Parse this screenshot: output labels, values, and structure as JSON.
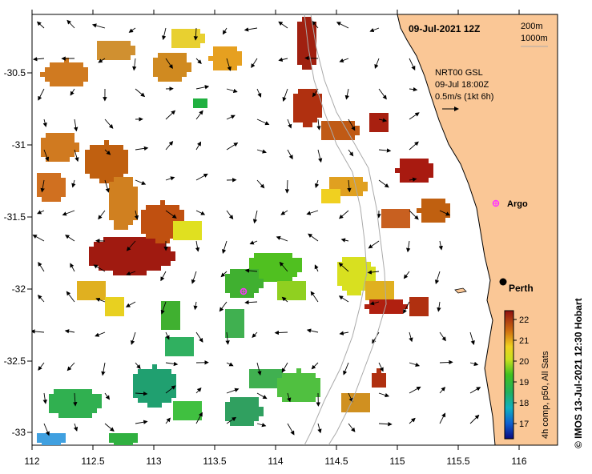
{
  "map": {
    "date_title": "09-Jul-2021 12Z",
    "isobath_labels": [
      "200m",
      "1000m"
    ],
    "current_info": {
      "model": "NRT00 GSL",
      "time": "09-Jul 18:00Z",
      "scale": "0.5m/s (1kt 6h)"
    },
    "places": {
      "perth": "Perth",
      "argo": "Argo"
    },
    "x_ticks": [
      "112",
      "112.5",
      "113",
      "113.5",
      "114",
      "114.5",
      "115",
      "115.5",
      "116"
    ],
    "y_ticks": [
      "-30.5",
      "-31",
      "-31.5",
      "-32",
      "-32.5",
      "-33"
    ],
    "side_caption": "© IMOS 13-Jul-2021 12:30 Hobart",
    "colorbar": {
      "title": "4h comp, p50, All Sats",
      "ticks": [
        "17",
        "18",
        "19",
        "20",
        "21",
        "22"
      ]
    },
    "colors": {
      "land": "#FAC796",
      "sea": "#FFFFFF",
      "argo_marker": "#FF33FF",
      "isobath": "#AAAAAA"
    }
  }
}
